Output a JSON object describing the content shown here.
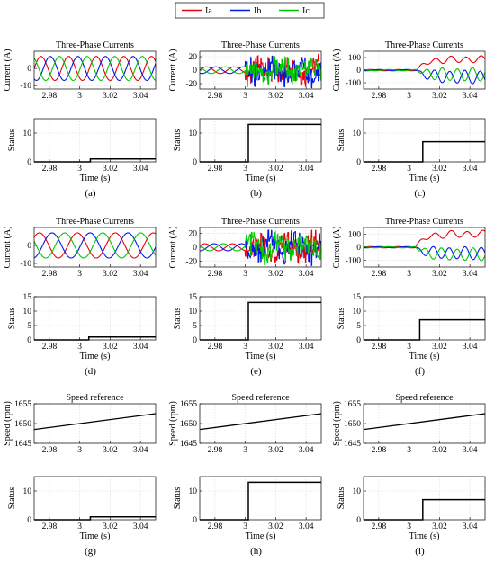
{
  "legend": {
    "entries": [
      {
        "label": "Ia",
        "color": "#e8000b"
      },
      {
        "label": "Ib",
        "color": "#0018e8"
      },
      {
        "label": "Ic",
        "color": "#00c800"
      }
    ]
  },
  "chart_data": [
    {
      "id": "a",
      "caption": "(a)",
      "type": "line",
      "top": {
        "title": "Three-Phase Currents",
        "ylabel": "Current (A)",
        "xlim": [
          2.97,
          3.05
        ],
        "ylim": [
          -12,
          10
        ],
        "yticks": [
          -10,
          0
        ],
        "xticks": [
          2.98,
          3,
          3.02,
          3.04
        ],
        "grid": true,
        "series": [
          {
            "name": "Ia",
            "color": "#e8000b",
            "signal": {
              "kind": "sine",
              "amp": 7,
              "freq": 55,
              "phase": 0,
              "mode": "normal"
            }
          },
          {
            "name": "Ib",
            "color": "#0018e8",
            "signal": {
              "kind": "sine",
              "amp": 7,
              "freq": 55,
              "phase": -2.094,
              "mode": "normal"
            }
          },
          {
            "name": "Ic",
            "color": "#00c800",
            "signal": {
              "kind": "sine",
              "amp": 7,
              "freq": 55,
              "phase": 2.094,
              "mode": "normal"
            }
          }
        ]
      },
      "bottom": {
        "ylabel": "Status",
        "xlabel": "Time (s)",
        "xlim": [
          2.97,
          3.05
        ],
        "ylim": [
          0,
          15
        ],
        "yticks": [
          0,
          10
        ],
        "xticks": [
          2.98,
          3,
          3.02,
          3.04
        ],
        "grid": true,
        "step": {
          "t": 3.007,
          "before": 0,
          "after": 1
        }
      }
    },
    {
      "id": "b",
      "caption": "(b)",
      "type": "line",
      "top": {
        "title": "Three-Phase Currents",
        "ylabel": "Current (A)",
        "xlim": [
          2.97,
          3.05
        ],
        "ylim": [
          -28,
          28
        ],
        "yticks": [
          -20,
          0,
          20
        ],
        "xticks": [
          2.98,
          3,
          3.02,
          3.04
        ],
        "grid": true,
        "series": [
          {
            "name": "Ia",
            "color": "#e8000b",
            "signal": {
              "kind": "sine",
              "amp": 5,
              "freq": 55,
              "phase": 0,
              "mode": "spiky",
              "tf": 3.0
            }
          },
          {
            "name": "Ib",
            "color": "#0018e8",
            "signal": {
              "kind": "sine",
              "amp": 5,
              "freq": 55,
              "phase": -2.094,
              "mode": "spiky",
              "tf": 3.0
            }
          },
          {
            "name": "Ic",
            "color": "#00c800",
            "signal": {
              "kind": "sine",
              "amp": 5,
              "freq": 55,
              "phase": 2.094,
              "mode": "spiky",
              "tf": 3.0
            }
          }
        ]
      },
      "bottom": {
        "ylabel": "Status",
        "xlabel": "Time (s)",
        "xlim": [
          2.97,
          3.05
        ],
        "ylim": [
          0,
          15
        ],
        "yticks": [
          0,
          10
        ],
        "xticks": [
          2.98,
          3,
          3.02,
          3.04
        ],
        "grid": true,
        "step": {
          "t": 3.002,
          "before": 0,
          "after": 13
        }
      }
    },
    {
      "id": "c",
      "caption": "(c)",
      "type": "line",
      "top": {
        "title": "Three-Phase Currents",
        "ylabel": "Current (A)",
        "xlim": [
          2.97,
          3.05
        ],
        "ylim": [
          -150,
          150
        ],
        "yticks": [
          -100,
          0,
          100
        ],
        "xticks": [
          2.98,
          3,
          3.02,
          3.04
        ],
        "grid": true,
        "series": [
          {
            "name": "Ia",
            "color": "#e8000b",
            "signal": {
              "kind": "sine",
              "amp": 5,
              "freq": 55,
              "phase": 0,
              "mode": "dc",
              "tf": 3.005,
              "dc": 85,
              "osc": 25,
              "oscfreq": 100
            }
          },
          {
            "name": "Ib",
            "color": "#0018e8",
            "signal": {
              "kind": "sine",
              "amp": 5,
              "freq": 55,
              "phase": -2.094,
              "mode": "dc",
              "tf": 3.005,
              "dc": -55,
              "osc": 50,
              "oscfreq": 100,
              "oscphase": 0.5
            }
          },
          {
            "name": "Ic",
            "color": "#00c800",
            "signal": {
              "kind": "sine",
              "amp": 5,
              "freq": 55,
              "phase": 2.094,
              "mode": "dc",
              "tf": 3.005,
              "dc": -35,
              "osc": 50,
              "oscfreq": 100,
              "oscphase": 3.6
            }
          }
        ]
      },
      "bottom": {
        "ylabel": "Status",
        "xlabel": "Time (s)",
        "xlim": [
          2.97,
          3.05
        ],
        "ylim": [
          0,
          15
        ],
        "yticks": [
          0,
          10
        ],
        "xticks": [
          2.98,
          3,
          3.02,
          3.04
        ],
        "grid": true,
        "step": {
          "t": 3.009,
          "before": 0,
          "after": 7
        }
      }
    },
    {
      "id": "d",
      "caption": "(d)",
      "type": "line",
      "top": {
        "title": "Three-Phase Currents",
        "ylabel": "Current (A)",
        "xlim": [
          2.97,
          3.05
        ],
        "ylim": [
          -12,
          10
        ],
        "yticks": [
          -10,
          0
        ],
        "xticks": [
          2.98,
          3,
          3.02,
          3.04
        ],
        "grid": true,
        "series": [
          {
            "name": "Ia",
            "color": "#e8000b",
            "signal": {
              "kind": "sine",
              "amp": 7,
              "freq": 40,
              "phase": 0.7,
              "mode": "normal"
            }
          },
          {
            "name": "Ib",
            "color": "#0018e8",
            "signal": {
              "kind": "sine",
              "amp": 7,
              "freq": 40,
              "phase": -1.394,
              "mode": "normal"
            }
          },
          {
            "name": "Ic",
            "color": "#00c800",
            "signal": {
              "kind": "sine",
              "amp": 7,
              "freq": 40,
              "phase": 2.794,
              "mode": "normal"
            }
          }
        ]
      },
      "bottom": {
        "ylabel": "Status",
        "xlabel": "Time (s)",
        "xlim": [
          2.97,
          3.05
        ],
        "ylim": [
          0,
          15
        ],
        "yticks": [
          0,
          5,
          10,
          15
        ],
        "xticks": [
          2.98,
          3,
          3.02,
          3.04
        ],
        "grid": true,
        "step": {
          "t": 3.006,
          "before": 0,
          "after": 1
        }
      }
    },
    {
      "id": "e",
      "caption": "(e)",
      "type": "line",
      "top": {
        "title": "Three-Phase Currents",
        "ylabel": "Current (A)",
        "xlim": [
          2.97,
          3.05
        ],
        "ylim": [
          -28,
          28
        ],
        "yticks": [
          -20,
          0,
          20
        ],
        "xticks": [
          2.98,
          3,
          3.02,
          3.04
        ],
        "grid": true,
        "series": [
          {
            "name": "Ia",
            "color": "#e8000b",
            "signal": {
              "kind": "sine",
              "amp": 5,
              "freq": 55,
              "phase": 0.4,
              "mode": "spiky",
              "tf": 3.0
            }
          },
          {
            "name": "Ib",
            "color": "#0018e8",
            "signal": {
              "kind": "sine",
              "amp": 5,
              "freq": 55,
              "phase": -1.694,
              "mode": "spiky",
              "tf": 3.0
            }
          },
          {
            "name": "Ic",
            "color": "#00c800",
            "signal": {
              "kind": "sine",
              "amp": 5,
              "freq": 55,
              "phase": 2.494,
              "mode": "spiky",
              "tf": 3.0
            }
          }
        ]
      },
      "bottom": {
        "ylabel": "Status",
        "xlabel": "Time (s)",
        "xlim": [
          2.97,
          3.05
        ],
        "ylim": [
          0,
          15
        ],
        "yticks": [
          0,
          5,
          10,
          15
        ],
        "xticks": [
          2.98,
          3,
          3.02,
          3.04
        ],
        "grid": true,
        "step": {
          "t": 3.002,
          "before": 0,
          "after": 13
        }
      }
    },
    {
      "id": "f",
      "caption": "(f)",
      "type": "line",
      "top": {
        "title": "Three-Phase Currents",
        "ylabel": "Current (A)",
        "xlim": [
          2.97,
          3.05
        ],
        "ylim": [
          -150,
          150
        ],
        "yticks": [
          -100,
          0,
          100
        ],
        "xticks": [
          2.98,
          3,
          3.02,
          3.04
        ],
        "grid": true,
        "series": [
          {
            "name": "Ia",
            "color": "#e8000b",
            "signal": {
              "kind": "sine",
              "amp": 5,
              "freq": 55,
              "phase": 0,
              "mode": "dc",
              "tf": 3.004,
              "dc": 100,
              "osc": 25,
              "oscfreq": 95
            }
          },
          {
            "name": "Ib",
            "color": "#0018e8",
            "signal": {
              "kind": "sine",
              "amp": 5,
              "freq": 55,
              "phase": -2.094,
              "mode": "dc",
              "tf": 3.004,
              "dc": -45,
              "osc": 45,
              "oscfreq": 95,
              "oscphase": 0.8
            }
          },
          {
            "name": "Ic",
            "color": "#00c800",
            "signal": {
              "kind": "sine",
              "amp": 5,
              "freq": 55,
              "phase": 2.094,
              "mode": "dc",
              "tf": 3.004,
              "dc": -55,
              "osc": 45,
              "oscfreq": 95,
              "oscphase": 3.9
            }
          }
        ]
      },
      "bottom": {
        "ylabel": "Status",
        "xlabel": "Time (s)",
        "xlim": [
          2.97,
          3.05
        ],
        "ylim": [
          0,
          15
        ],
        "yticks": [
          0,
          5,
          10,
          15
        ],
        "xticks": [
          2.98,
          3,
          3.02,
          3.04
        ],
        "grid": true,
        "step": {
          "t": 3.007,
          "before": 0,
          "after": 7
        }
      }
    },
    {
      "id": "g",
      "caption": "(g)",
      "type": "line",
      "top": {
        "title": "Speed reference",
        "ylabel": "Speed (rpm)",
        "xlim": [
          2.97,
          3.05
        ],
        "ylim": [
          1645,
          1655
        ],
        "yticks": [
          1645,
          1650,
          1655
        ],
        "xticks": [
          2.98,
          3,
          3.02,
          3.04
        ],
        "grid": true,
        "series": [
          {
            "name": "",
            "color": "#000000",
            "points": [
              [
                2.97,
                1648.5
              ],
              [
                3.05,
                1652.5
              ]
            ]
          }
        ]
      },
      "bottom": {
        "ylabel": "Status",
        "xlabel": "Time (s)",
        "xlim": [
          2.97,
          3.05
        ],
        "ylim": [
          0,
          15
        ],
        "yticks": [
          0,
          10
        ],
        "xticks": [
          2.98,
          3,
          3.02,
          3.04
        ],
        "grid": true,
        "step": {
          "t": 3.007,
          "before": 0,
          "after": 1
        }
      }
    },
    {
      "id": "h",
      "caption": "(h)",
      "type": "line",
      "top": {
        "title": "Speed reference",
        "ylabel": "Speed (rpm)",
        "xlim": [
          2.97,
          3.05
        ],
        "ylim": [
          1645,
          1655
        ],
        "yticks": [
          1645,
          1650,
          1655
        ],
        "xticks": [
          2.98,
          3,
          3.02,
          3.04
        ],
        "grid": true,
        "series": [
          {
            "name": "",
            "color": "#000000",
            "points": [
              [
                2.97,
                1648.5
              ],
              [
                3.05,
                1652.5
              ]
            ]
          }
        ]
      },
      "bottom": {
        "ylabel": "Status",
        "xlabel": "Time (s)",
        "xlim": [
          2.97,
          3.05
        ],
        "ylim": [
          0,
          15
        ],
        "yticks": [
          0,
          10
        ],
        "xticks": [
          2.98,
          3,
          3.02,
          3.04
        ],
        "grid": true,
        "step": {
          "t": 3.002,
          "before": 0,
          "after": 13
        }
      }
    },
    {
      "id": "i",
      "caption": "(i)",
      "type": "line",
      "top": {
        "title": "Speed reference",
        "ylabel": "Speed (rpm)",
        "xlim": [
          2.97,
          3.05
        ],
        "ylim": [
          1645,
          1655
        ],
        "yticks": [
          1645,
          1650,
          1655
        ],
        "xticks": [
          2.98,
          3,
          3.02,
          3.04
        ],
        "grid": true,
        "series": [
          {
            "name": "",
            "color": "#000000",
            "points": [
              [
                2.97,
                1648.5
              ],
              [
                3.05,
                1652.5
              ]
            ]
          }
        ]
      },
      "bottom": {
        "ylabel": "Status",
        "xlabel": "Time (s)",
        "xlim": [
          2.97,
          3.05
        ],
        "ylim": [
          0,
          15
        ],
        "yticks": [
          0,
          10
        ],
        "xticks": [
          2.98,
          3,
          3.02,
          3.04
        ],
        "grid": true,
        "step": {
          "t": 3.009,
          "before": 0,
          "after": 7
        }
      }
    }
  ]
}
